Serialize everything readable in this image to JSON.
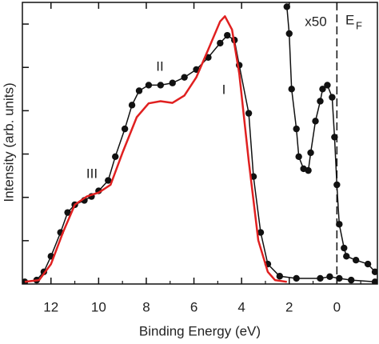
{
  "chart_data": {
    "type": "line",
    "x_label": "Binding Energy (eV)",
    "y_label": "Intensity (arb. units)",
    "xlim": [
      13.2,
      -1.7
    ],
    "ylim": [
      0,
      6.5
    ],
    "xticks": [
      12,
      10,
      8,
      6,
      4,
      2,
      0
    ],
    "xminorticks": [
      13,
      11,
      9,
      7,
      5,
      3,
      1,
      -1
    ],
    "yticks": [
      1,
      2,
      3,
      4,
      5,
      6
    ],
    "vline": 0,
    "annotations": [
      "III",
      "II",
      "I",
      "x50"
    ],
    "fermi_label": {
      "text": "E",
      "sub": "F"
    },
    "series": [
      {
        "color": "#111111",
        "style": "dots",
        "x": [
          13.1,
          12.6,
          12.3,
          12.0,
          11.6,
          11.3,
          11.0,
          10.6,
          10.3,
          10.0,
          9.6,
          9.3,
          8.9,
          8.6,
          8.3,
          7.9,
          7.4,
          6.9,
          6.4,
          5.9,
          5.4,
          4.9,
          4.6,
          4.3,
          4.1,
          3.7,
          3.5,
          3.2,
          2.9,
          2.4,
          1.7,
          0.7,
          0.3,
          -0.1,
          -0.6,
          -1.6
        ],
        "values": [
          0.05,
          0.09,
          0.28,
          0.64,
          1.19,
          1.65,
          1.83,
          1.93,
          2.02,
          2.15,
          2.39,
          2.94,
          3.58,
          4.13,
          4.46,
          4.59,
          4.59,
          4.64,
          4.77,
          4.95,
          5.23,
          5.56,
          5.74,
          5.63,
          5.05,
          3.94,
          2.48,
          1.19,
          0.46,
          0.18,
          0.13,
          0.13,
          0.17,
          0.13,
          0.09,
          0.05
        ]
      },
      {
        "color": "#e02020",
        "style": "line",
        "x": [
          13.1,
          12.5,
          12.0,
          11.5,
          11.0,
          10.5,
          10.0,
          9.5,
          9.0,
          8.4,
          7.9,
          7.4,
          6.9,
          6.4,
          5.9,
          5.4,
          4.9,
          4.7,
          4.4,
          4.1,
          3.7,
          3.3,
          2.9,
          2.6,
          2.1
        ],
        "values": [
          0.05,
          0.09,
          0.46,
          1.19,
          1.83,
          2.02,
          2.11,
          2.29,
          3.03,
          3.85,
          4.17,
          4.22,
          4.18,
          4.35,
          4.77,
          5.41,
          6.06,
          6.18,
          5.87,
          4.86,
          2.84,
          1.01,
          0.28,
          0.09,
          0.05
        ]
      },
      {
        "color": "#111111",
        "style": "dots",
        "x": [
          2.1,
          2.0,
          1.9,
          1.7,
          1.6,
          1.4,
          1.2,
          1.1,
          0.9,
          0.7,
          0.6,
          0.4,
          0.2,
          0.1,
          0.0,
          -0.1,
          -0.3,
          -0.4,
          -0.8,
          -1.3,
          -1.6
        ],
        "values": [
          6.4,
          5.78,
          4.5,
          3.58,
          2.94,
          2.66,
          2.62,
          3.03,
          3.76,
          4.22,
          4.5,
          4.59,
          4.31,
          3.39,
          2.29,
          1.38,
          0.83,
          0.64,
          0.55,
          0.46,
          0.28
        ]
      }
    ]
  }
}
